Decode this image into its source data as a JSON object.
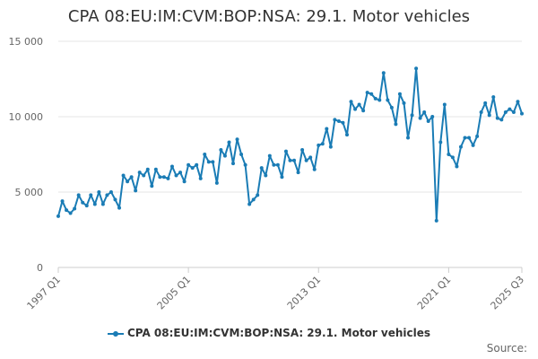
{
  "chart_data": {
    "type": "line",
    "title": "CPA 08:EU:IM:CVM:BOP:NSA: 29.1. Motor vehicles",
    "source_label": "Source:",
    "color": "#1a7cb5",
    "ylim": [
      0,
      15000
    ],
    "yticks": [
      "0",
      "5 000",
      "10 000",
      "15 000"
    ],
    "ytick_values": [
      0,
      5000,
      10000,
      15000
    ],
    "xticks": [
      "1997 Q1",
      "2005 Q1",
      "2013 Q1",
      "2021 Q1",
      "2025 Q3"
    ],
    "xtick_indices": [
      0,
      32,
      64,
      96,
      114
    ],
    "grid": true,
    "legend_position": "bottom",
    "series": [
      {
        "name": "CPA 08:EU:IM:CVM:BOP:NSA: 29.1. Motor vehicles",
        "start": "1997 Q1",
        "end": "2025 Q3",
        "values": [
          3400,
          4400,
          3800,
          3600,
          3900,
          4800,
          4300,
          4100,
          4800,
          4200,
          5000,
          4200,
          4800,
          5000,
          4500,
          3950,
          6100,
          5700,
          6000,
          5100,
          6300,
          6100,
          6500,
          5400,
          6500,
          6000,
          6000,
          5900,
          6700,
          6100,
          6300,
          5700,
          6800,
          6600,
          6800,
          5900,
          7500,
          7000,
          7000,
          5600,
          7800,
          7400,
          8300,
          6900,
          8500,
          7500,
          6800,
          4200,
          4500,
          4800,
          6600,
          6100,
          7400,
          6800,
          6800,
          6000,
          7700,
          7100,
          7100,
          6300,
          7800,
          7100,
          7300,
          6500,
          8100,
          8200,
          9200,
          8000,
          9800,
          9700,
          9600,
          8800,
          11000,
          10500,
          10800,
          10400,
          11600,
          11500,
          11200,
          11100,
          12900,
          11100,
          10600,
          9500,
          11500,
          10900,
          8600,
          10100,
          13200,
          9900,
          10300,
          9700,
          10000,
          3100,
          8300,
          10800,
          7500,
          7300,
          6700,
          8000,
          8600,
          8600,
          8100,
          8700,
          10300,
          10900,
          10100,
          11300,
          9900,
          9800,
          10300,
          10500,
          10300,
          11000,
          10200
        ]
      }
    ]
  }
}
